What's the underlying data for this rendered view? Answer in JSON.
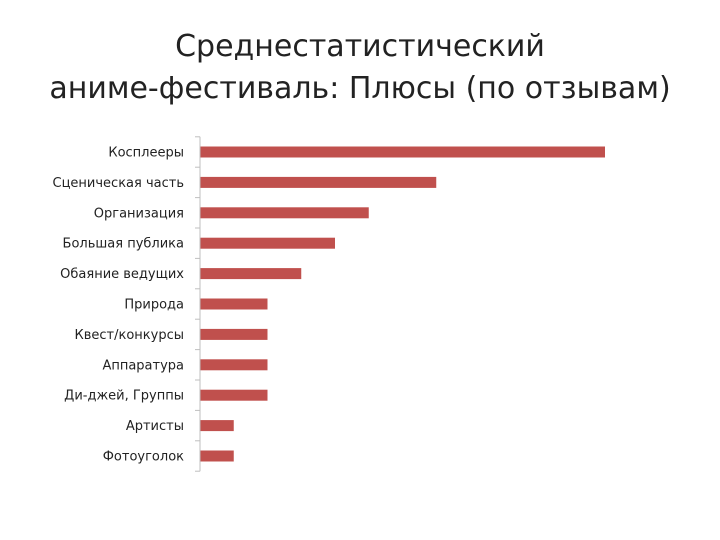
{
  "slide": {
    "title_line1": "Среднестатистический",
    "title_line2": "аниме-фестиваль: Плюсы (по отзывам)"
  },
  "chart_data": {
    "type": "bar",
    "orientation": "horizontal",
    "categories": [
      "Косплееры",
      "Сценическая часть",
      "Организация",
      "Большая публика",
      "Обаяние ведущих",
      "Природа",
      "Квест/конкурсы",
      "Аппаратура",
      "Ди-джей, Группы",
      "Артисты",
      "Фотоуголок"
    ],
    "values": [
      12,
      7,
      5,
      4,
      3,
      2,
      2,
      2,
      2,
      1,
      1
    ],
    "xlim": [
      0,
      12
    ],
    "bar_color": "#c0504d",
    "axis_color": "#bfbfbf",
    "grid": false,
    "legend": "none"
  }
}
